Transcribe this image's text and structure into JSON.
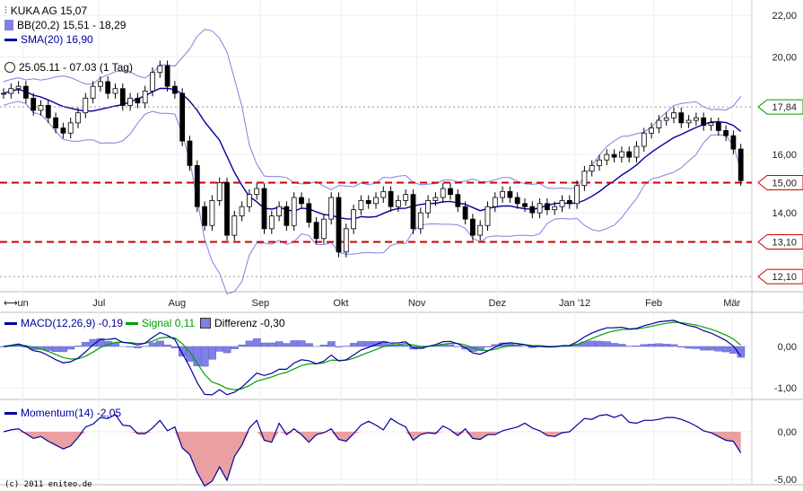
{
  "legend": {
    "instrument": "KUKA AG 15,07",
    "bb": "BB(20,2) 15,51 - 18,29",
    "sma": "SMA(20) 16,90",
    "range": "25.05.11 - 07.03 (1 Tag)",
    "macd": "MACD(12,26,9) -0,19",
    "signal": "Signal 0,11",
    "diff": "Differenz -0,30",
    "momentum": "Momentum(14) -2,05"
  },
  "footer": "(c) 2011 eniteo.de",
  "colors": {
    "candle": "#000000",
    "bb": "#8080e0",
    "sma": "#0000a0",
    "macd": "#0000a0",
    "signal": "#00a000",
    "hist": "#7f7fe8",
    "mom_fill": "#eaa0a0",
    "red_line": "#cc0000",
    "green_tag": "#00a000"
  },
  "chart_data": [
    {
      "type": "candlestick",
      "title": "KUKA AG",
      "scale": "log",
      "ylim": [
        11.6,
        22.2
      ],
      "yticks": [
        "22,00",
        "20,00",
        "16,00",
        "14,00"
      ],
      "ytick_values": [
        22,
        20,
        16,
        14
      ],
      "xticks": [
        "un",
        "Jul",
        "Aug",
        "Sep",
        "Okt",
        "Nov",
        "Dez",
        "Jan '12",
        "Feb",
        "Mär"
      ],
      "xtick_bar_index": [
        2.6,
        12.8,
        23.3,
        34.5,
        45.3,
        55.5,
        66.3,
        76.7,
        87.3,
        97.8
      ],
      "closes": [
        18.4,
        18.6,
        18.7,
        18.2,
        17.7,
        17.9,
        17.4,
        17.0,
        16.8,
        17.2,
        17.6,
        18.2,
        18.7,
        18.9,
        18.4,
        18.6,
        17.9,
        18.2,
        18.0,
        18.5,
        19.3,
        19.6,
        18.7,
        18.4,
        16.5,
        15.6,
        14.2,
        13.6,
        14.4,
        15.0,
        13.3,
        13.9,
        14.2,
        14.6,
        14.8,
        13.5,
        13.9,
        14.2,
        13.6,
        14.5,
        14.3,
        13.7,
        13.2,
        13.8,
        14.5,
        12.8,
        13.5,
        14.1,
        14.4,
        14.3,
        14.5,
        14.7,
        14.2,
        14.4,
        14.6,
        13.5,
        14.0,
        14.4,
        14.5,
        14.8,
        14.6,
        14.2,
        13.8,
        13.3,
        13.6,
        14.2,
        14.5,
        14.7,
        14.5,
        14.3,
        14.2,
        14.0,
        14.3,
        14.1,
        14.2,
        14.4,
        14.3,
        14.9,
        15.4,
        15.6,
        15.8,
        16.0,
        15.9,
        16.1,
        15.9,
        16.3,
        16.8,
        17.0,
        17.3,
        17.4,
        17.6,
        17.2,
        17.3,
        17.4,
        17.1,
        17.2,
        16.9,
        16.7,
        16.2,
        15.07
      ],
      "levels": [
        {
          "value": 17.84,
          "label": "17,84",
          "style": "dotted-gray",
          "tag": "green"
        },
        {
          "value": 15.0,
          "label": "15,00",
          "style": "dashed-red",
          "tag": "red"
        },
        {
          "value": 13.1,
          "label": "13,10",
          "style": "dashed-red",
          "tag": "red"
        },
        {
          "value": 12.1,
          "label": "12,10",
          "style": "dotted-gray",
          "tag": "red"
        }
      ]
    },
    {
      "type": "line",
      "title": "MACD",
      "yticks": [
        "0,00",
        "-1,00"
      ],
      "ytick_values": [
        0,
        -1
      ]
    },
    {
      "type": "area",
      "title": "Momentum",
      "yticks": [
        "0,00",
        "-5,00"
      ],
      "ytick_values": [
        0,
        -5
      ]
    }
  ]
}
